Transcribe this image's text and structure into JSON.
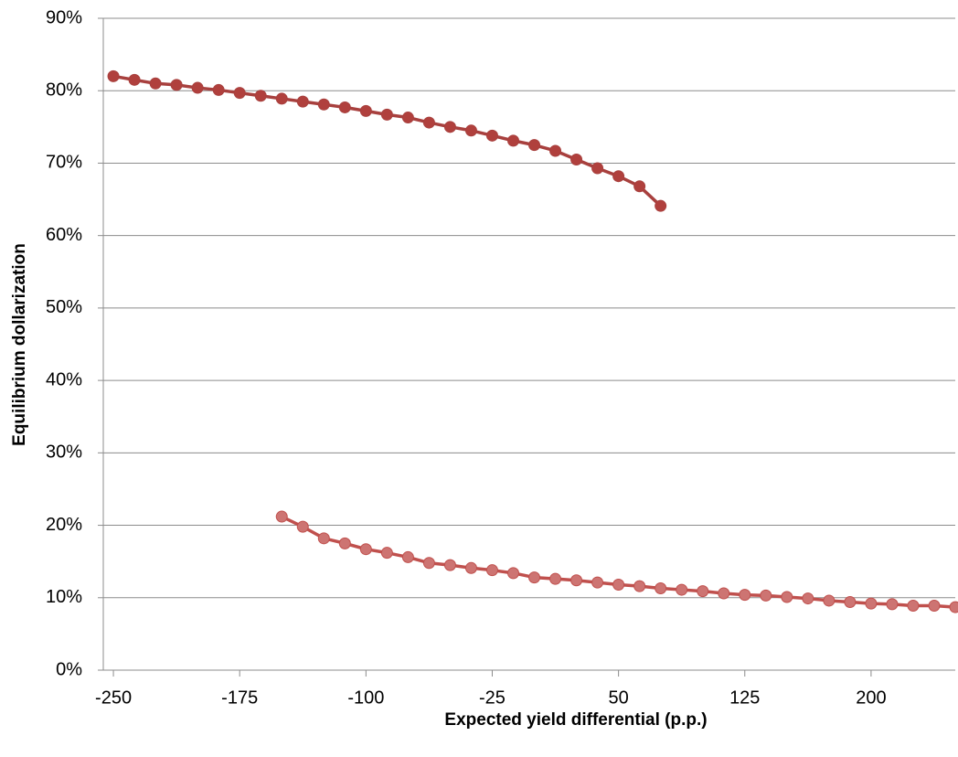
{
  "chart_data": {
    "type": "line",
    "xlabel": "Expected yield differential (p.p.)",
    "ylabel": "Equilibrium dollarization",
    "xlim": [
      -256,
      250
    ],
    "xticks": [
      -250,
      -175,
      -100,
      -25,
      50,
      125,
      200
    ],
    "ylim": [
      0,
      90
    ],
    "yticks": [
      {
        "value": 0,
        "label": "0%"
      },
      {
        "value": 10,
        "label": "10%"
      },
      {
        "value": 20,
        "label": "20%"
      },
      {
        "value": 30,
        "label": "30%"
      },
      {
        "value": 40,
        "label": "40%"
      },
      {
        "value": 50,
        "label": "50%"
      },
      {
        "value": 60,
        "label": "60%"
      },
      {
        "value": 70,
        "label": "70%"
      },
      {
        "value": 80,
        "label": "80%"
      },
      {
        "value": 90,
        "label": "90%"
      }
    ],
    "grid": true,
    "series": [
      {
        "color": "#a8403e",
        "marker_color": "#b0403d",
        "x": [
          -250,
          -237.5,
          -225,
          -212.5,
          -200,
          -187.5,
          -175,
          -162.5,
          -150,
          -137.5,
          -125,
          -112.5,
          -100,
          -87.5,
          -75,
          -62.5,
          -50,
          -37.5,
          -25,
          -12.5,
          0,
          12.5,
          25,
          37.5,
          50,
          62.5,
          75
        ],
        "values": [
          82,
          81.5,
          81,
          80.8,
          80.4,
          80.1,
          79.7,
          79.3,
          78.9,
          78.5,
          78.1,
          77.7,
          77.2,
          76.7,
          76.3,
          75.6,
          75,
          74.5,
          73.8,
          73.1,
          72.5,
          71.7,
          70.5,
          69.3,
          68.2,
          66.8,
          64.1
        ]
      },
      {
        "color": "#c0504d",
        "marker_color": "#cd7472",
        "x": [
          -150,
          -137.5,
          -125,
          -112.5,
          -100,
          -87.5,
          -75,
          -62.5,
          -50,
          -37.5,
          -25,
          -12.5,
          0,
          12.5,
          25,
          37.5,
          50,
          62.5,
          75,
          87.5,
          100,
          112.5,
          125,
          137.5,
          150,
          162.5,
          175,
          187.5,
          200,
          212.5,
          225,
          237.5,
          250
        ],
        "values": [
          21.2,
          19.8,
          18.2,
          17.5,
          16.7,
          16.2,
          15.6,
          14.8,
          14.5,
          14.1,
          13.8,
          13.4,
          12.8,
          12.6,
          12.4,
          12.1,
          11.8,
          11.6,
          11.3,
          11.1,
          10.9,
          10.6,
          10.4,
          10.3,
          10.1,
          9.9,
          9.6,
          9.4,
          9.2,
          9.1,
          8.9,
          8.9,
          8.7
        ]
      }
    ]
  }
}
